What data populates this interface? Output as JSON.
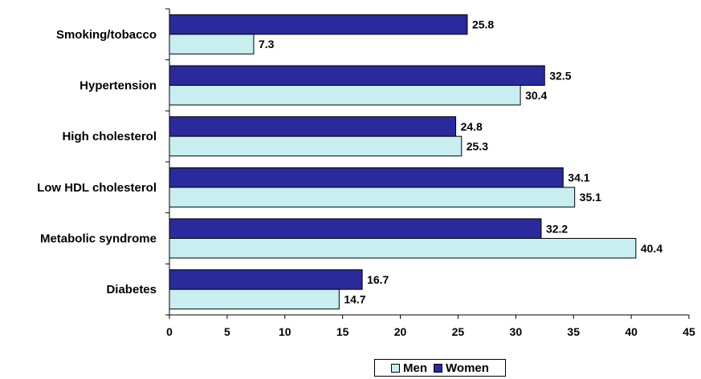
{
  "chart_data": {
    "type": "bar",
    "orientation": "horizontal",
    "categories": [
      "Smoking/tobacco",
      "Hypertension",
      "High cholesterol",
      "Low HDL cholesterol",
      "Metabolic syndrome",
      "Diabetes"
    ],
    "series": [
      {
        "name": "Women",
        "color": "#2A2A9C",
        "values": [
          25.8,
          32.5,
          24.8,
          34.1,
          32.2,
          16.7
        ]
      },
      {
        "name": "Men",
        "color": "#C8EEF0",
        "values": [
          7.3,
          30.4,
          25.3,
          35.1,
          40.4,
          14.7
        ]
      }
    ],
    "xlim": [
      0,
      45
    ],
    "xticks": [
      0,
      5,
      10,
      15,
      20,
      25,
      30,
      35,
      40,
      45
    ],
    "grid": false,
    "legend": {
      "placement": "bottom",
      "order": [
        "Men",
        "Women"
      ]
    }
  }
}
